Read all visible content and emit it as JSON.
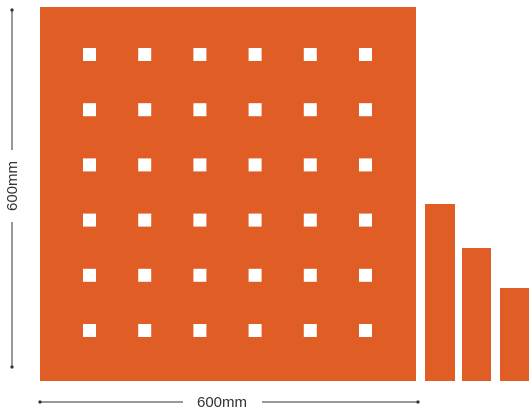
{
  "colors": {
    "panel": "#E05E26",
    "hole": "#FFFFFF",
    "dimension_line": "#333333",
    "background": "#FFFFFF"
  },
  "panel": {
    "hole_grid": {
      "rows": 6,
      "columns": 6
    }
  },
  "side_samples": {
    "count": 3
  },
  "dimensions": {
    "width_label": "600mm",
    "height_label": "600mm"
  }
}
